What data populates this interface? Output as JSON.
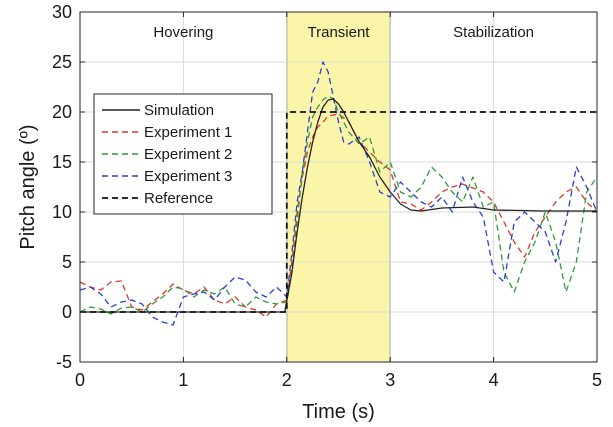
{
  "chart_data": {
    "type": "line",
    "xlabel": "Time (s)",
    "ylabel": "Pitch angle (º)",
    "xlim": [
      0,
      5
    ],
    "ylim": [
      -5,
      30
    ],
    "xticks": [
      0,
      1,
      2,
      3,
      4,
      5
    ],
    "yticks": [
      -5,
      0,
      5,
      10,
      15,
      20,
      25,
      30
    ],
    "grid": true,
    "legend_position": "center-left",
    "regions": [
      {
        "label": "Hovering",
        "x0": 0,
        "x1": 2,
        "color": "#ffffff"
      },
      {
        "label": "Transient",
        "x0": 2,
        "x1": 3,
        "color": "#fbf5a9"
      },
      {
        "label": "Stabilization",
        "x0": 3,
        "x1": 5,
        "color": "#ffffff"
      }
    ],
    "series": [
      {
        "name": "Simulation",
        "color": "#222222",
        "dash": "solid",
        "x": [
          0,
          1.98,
          2.05,
          2.1,
          2.15,
          2.2,
          2.25,
          2.3,
          2.35,
          2.4,
          2.45,
          2.5,
          2.55,
          2.6,
          2.7,
          2.8,
          2.9,
          3.0,
          3.1,
          3.2,
          3.3,
          3.5,
          3.8,
          4.0,
          4.5,
          5.0
        ],
        "y": [
          0,
          0,
          4,
          8,
          11.5,
          14.5,
          17,
          19,
          20.5,
          21.2,
          21.3,
          20.8,
          20,
          19,
          17,
          15.5,
          13.5,
          12,
          10.8,
          10.2,
          10.1,
          10.4,
          10.5,
          10.2,
          10.1,
          10.1
        ]
      },
      {
        "name": "Experiment 1",
        "color": "#d93a2b",
        "dash": "dashed",
        "x": [
          0,
          0.1,
          0.2,
          0.3,
          0.4,
          0.5,
          0.6,
          0.7,
          0.8,
          0.9,
          1.0,
          1.1,
          1.2,
          1.3,
          1.4,
          1.5,
          1.6,
          1.7,
          1.8,
          1.9,
          2.0,
          2.05,
          2.1,
          2.15,
          2.2,
          2.25,
          2.3,
          2.35,
          2.4,
          2.5,
          2.6,
          2.7,
          2.8,
          2.9,
          3.0,
          3.1,
          3.2,
          3.3,
          3.4,
          3.5,
          3.6,
          3.7,
          3.8,
          3.9,
          4.0,
          4.1,
          4.2,
          4.3,
          4.4,
          4.5,
          4.6,
          4.7,
          4.8,
          4.9,
          5.0
        ],
        "y": [
          3,
          2.5,
          2.2,
          3,
          3.1,
          0.5,
          0.2,
          1,
          1.8,
          2.8,
          2.2,
          1.8,
          2.5,
          1.2,
          0.8,
          1.5,
          0.5,
          0.2,
          -0.5,
          0.8,
          1.2,
          5,
          10,
          13.5,
          16,
          17.5,
          18.5,
          19,
          19.6,
          19.8,
          19,
          17,
          16,
          15,
          14.2,
          11,
          10.8,
          10.2,
          11,
          12,
          12.5,
          12.8,
          12.4,
          12,
          11,
          9,
          7,
          5.5,
          8,
          9.5,
          11,
          12,
          12.5,
          11,
          10
        ]
      },
      {
        "name": "Experiment 2",
        "color": "#2f9a3a",
        "dash": "dashed",
        "x": [
          0,
          0.1,
          0.2,
          0.3,
          0.4,
          0.5,
          0.6,
          0.7,
          0.8,
          0.9,
          1.0,
          1.1,
          1.2,
          1.3,
          1.4,
          1.5,
          1.6,
          1.7,
          1.8,
          1.9,
          2.0,
          2.05,
          2.1,
          2.15,
          2.2,
          2.25,
          2.3,
          2.35,
          2.4,
          2.45,
          2.5,
          2.6,
          2.7,
          2.8,
          2.9,
          3.0,
          3.1,
          3.2,
          3.3,
          3.4,
          3.5,
          3.6,
          3.7,
          3.8,
          3.9,
          4.0,
          4.1,
          4.2,
          4.3,
          4.4,
          4.5,
          4.6,
          4.7,
          4.8,
          4.9,
          5.0
        ],
        "y": [
          0,
          0.5,
          0.3,
          -0.2,
          0.4,
          0.5,
          0,
          0.8,
          1.5,
          2.5,
          2.3,
          1.5,
          2.2,
          1.8,
          2.5,
          0.8,
          0.5,
          1.5,
          1.0,
          0.8,
          1.0,
          4,
          9,
          14,
          17,
          19.5,
          20.5,
          21.2,
          21.6,
          21.3,
          20,
          18,
          16.8,
          17.5,
          14,
          15,
          12,
          11.5,
          12.5,
          14.5,
          13.5,
          12,
          11,
          13.5,
          10.5,
          11,
          4,
          2,
          5,
          7,
          10,
          7,
          2,
          5,
          12,
          13.5
        ]
      },
      {
        "name": "Experiment 3",
        "color": "#2a3fcf",
        "dash": "dashed",
        "x": [
          0,
          0.1,
          0.2,
          0.3,
          0.4,
          0.5,
          0.6,
          0.7,
          0.8,
          0.9,
          1.0,
          1.1,
          1.2,
          1.3,
          1.4,
          1.5,
          1.6,
          1.7,
          1.8,
          1.9,
          2.0,
          2.05,
          2.1,
          2.15,
          2.2,
          2.25,
          2.3,
          2.35,
          2.4,
          2.5,
          2.55,
          2.6,
          2.7,
          2.8,
          2.9,
          3.0,
          3.1,
          3.2,
          3.3,
          3.4,
          3.5,
          3.6,
          3.7,
          3.8,
          3.9,
          4.0,
          4.1,
          4.2,
          4.3,
          4.4,
          4.5,
          4.6,
          4.7,
          4.8,
          4.9,
          5.0
        ],
        "y": [
          2.2,
          2.5,
          1.8,
          0.5,
          1.0,
          1.2,
          0.8,
          -0.5,
          -1.0,
          -1.3,
          1.5,
          1.8,
          2.0,
          1.2,
          2.5,
          3.5,
          3.2,
          2.0,
          1.5,
          2.5,
          1.5,
          6,
          11,
          14,
          18,
          22,
          23,
          25,
          24,
          19,
          17,
          16.8,
          17.5,
          15,
          12,
          11.5,
          13,
          12,
          11,
          10.5,
          11.5,
          10,
          13.5,
          11,
          9.5,
          4,
          3,
          9,
          10,
          9,
          8,
          5,
          9,
          14.5,
          12.5,
          10
        ]
      },
      {
        "name": "Reference",
        "color": "#111111",
        "dash": "dashed",
        "x": [
          0,
          2,
          2,
          5
        ],
        "y": [
          0,
          0,
          20,
          20
        ]
      }
    ]
  }
}
